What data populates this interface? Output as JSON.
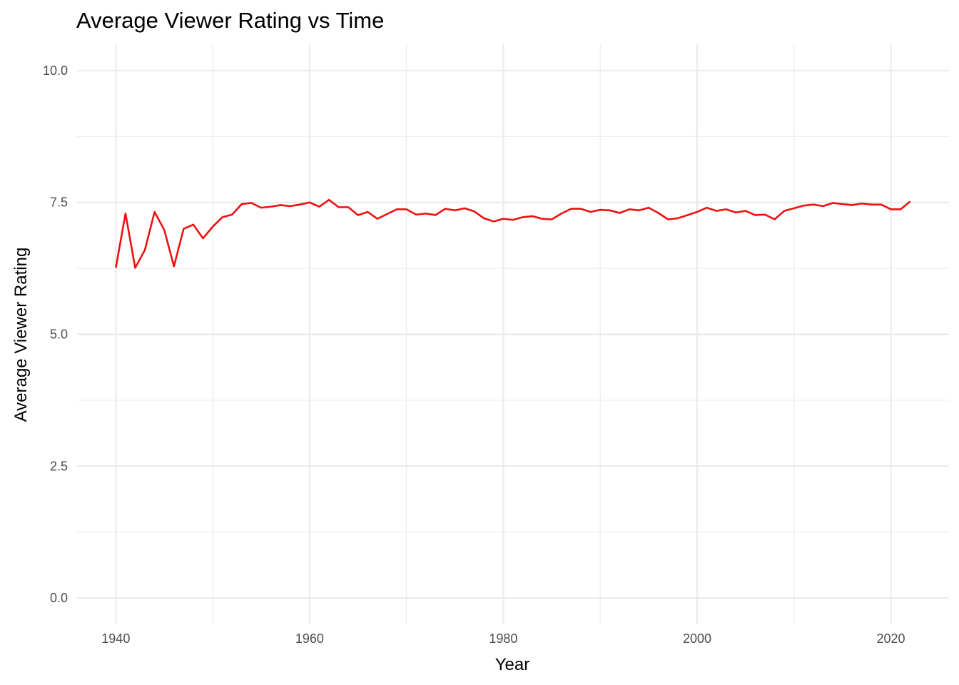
{
  "chart_data": {
    "type": "line",
    "title": "Average Viewer Rating vs Time",
    "xlabel": "Year",
    "ylabel": "Average Viewer Rating",
    "xlim": [
      1936,
      2026
    ],
    "ylim": [
      -0.5,
      10.5
    ],
    "x_ticks": [
      1940,
      1960,
      1980,
      2000,
      2020
    ],
    "x_tick_labels": [
      "1940",
      "1960",
      "1980",
      "2000",
      "2020"
    ],
    "y_ticks": [
      0,
      2.5,
      5,
      7.5,
      10
    ],
    "y_tick_labels": [
      "0.0",
      "2.5",
      "5.0",
      "7.5",
      "10.0"
    ],
    "grid": true,
    "line_color": "#ee1111",
    "series": [
      {
        "x": [
          1940,
          1941,
          1942,
          1943,
          1944,
          1945,
          1946,
          1947,
          1948,
          1949,
          1950,
          1951,
          1952,
          1953,
          1954,
          1955,
          1956,
          1957,
          1958,
          1959,
          1960,
          1961,
          1962,
          1963,
          1964,
          1965,
          1966,
          1967,
          1968,
          1969,
          1970,
          1971,
          1972,
          1973,
          1974,
          1975,
          1976,
          1977,
          1978,
          1979,
          1980,
          1981,
          1982,
          1983,
          1984,
          1985,
          1986,
          1987,
          1988,
          1989,
          1990,
          1991,
          1992,
          1993,
          1994,
          1995,
          1996,
          1997,
          1998,
          1999,
          2000,
          2001,
          2002,
          2003,
          2004,
          2005,
          2006,
          2007,
          2008,
          2009,
          2010,
          2011,
          2012,
          2013,
          2014,
          2015,
          2016,
          2017,
          2018,
          2019,
          2020,
          2021,
          2022
        ],
        "y": [
          6.26,
          7.29,
          6.26,
          6.6,
          7.32,
          6.98,
          6.29,
          7.0,
          7.08,
          6.82,
          7.04,
          7.22,
          7.27,
          7.47,
          7.49,
          7.4,
          7.42,
          7.45,
          7.43,
          7.46,
          7.5,
          7.42,
          7.55,
          7.41,
          7.41,
          7.26,
          7.32,
          7.19,
          7.28,
          7.37,
          7.37,
          7.27,
          7.29,
          7.26,
          7.38,
          7.35,
          7.39,
          7.33,
          7.2,
          7.14,
          7.19,
          7.17,
          7.22,
          7.24,
          7.19,
          7.18,
          7.29,
          7.38,
          7.38,
          7.32,
          7.36,
          7.35,
          7.3,
          7.37,
          7.35,
          7.4,
          7.3,
          7.18,
          7.2,
          7.26,
          7.32,
          7.4,
          7.34,
          7.37,
          7.31,
          7.34,
          7.26,
          7.27,
          7.18,
          7.34,
          7.39,
          7.44,
          7.46,
          7.43,
          7.49,
          7.47,
          7.45,
          7.48,
          7.46,
          7.46,
          7.37,
          7.37,
          7.52
        ]
      }
    ]
  }
}
